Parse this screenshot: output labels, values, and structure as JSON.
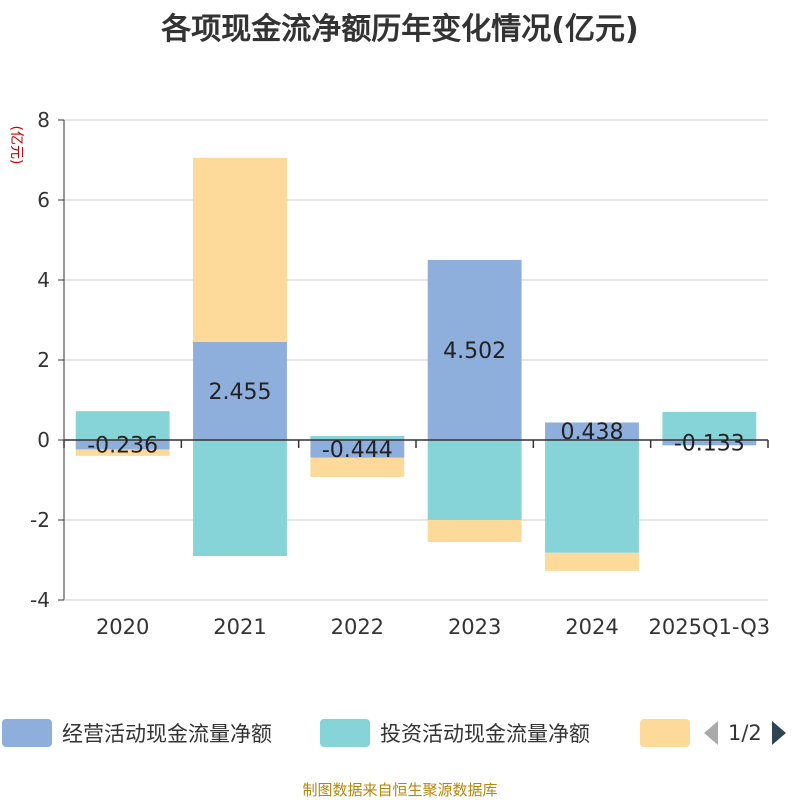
{
  "title": "各项现金流净额历年变化情况(亿元)",
  "source": "制图数据来自恒生聚源数据库",
  "colors": {
    "operating": "#8eaedb",
    "investing": "#87d4d8",
    "financing": "#fdd99a",
    "axis": "#333333",
    "grid": "#cccccc",
    "ylabel": "#cc0000",
    "source": "#b8860b"
  },
  "legend": {
    "page": "1/2"
  },
  "chart_data": {
    "type": "bar",
    "stacked": true,
    "ylabel": "(亿元)",
    "ylim": [
      -4,
      8
    ],
    "yticks": [
      8,
      6,
      4,
      2,
      0,
      -2,
      -4
    ],
    "grid": true,
    "categories": [
      "2020",
      "2021",
      "2022",
      "2023",
      "2024",
      "2025Q1-Q3"
    ],
    "series": [
      {
        "name": "经营活动现金流量净额",
        "values": [
          -0.236,
          2.455,
          -0.444,
          4.502,
          0.438,
          -0.133
        ]
      },
      {
        "name": "投资活动现金流量净额",
        "values": [
          0.72,
          -2.9,
          0.1,
          -2.0,
          -2.82,
          0.7
        ]
      },
      {
        "name": "",
        "values": [
          -0.16,
          4.6,
          -0.48,
          -0.55,
          -0.45,
          0.0
        ]
      }
    ],
    "data_labels": [
      "-0.236",
      "2.455",
      "-0.444",
      "4.502",
      "0.438",
      "-0.133"
    ]
  }
}
